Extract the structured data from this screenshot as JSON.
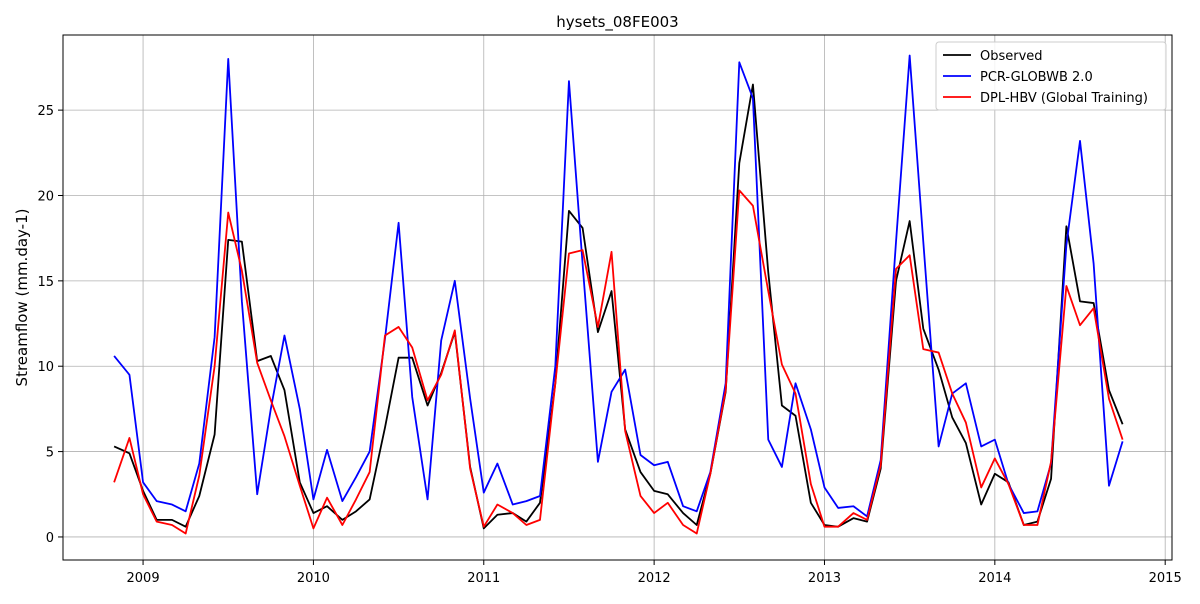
{
  "chart_data": {
    "type": "line",
    "title": "hysets_08FE003",
    "xlabel": "",
    "ylabel": "Streamflow (mm.day-1)",
    "xlim": [
      2008.53,
      2015.04
    ],
    "ylim": [
      -1.35,
      29.4
    ],
    "grid": true,
    "legend_position": "top-right",
    "x_ticks": [
      2009,
      2010,
      2011,
      2012,
      2013,
      2014,
      2015
    ],
    "y_ticks": [
      0,
      5,
      10,
      15,
      20,
      25
    ],
    "x": [
      2008.83,
      2008.92,
      2009.0,
      2009.08,
      2009.17,
      2009.25,
      2009.33,
      2009.42,
      2009.5,
      2009.58,
      2009.67,
      2009.75,
      2009.83,
      2009.92,
      2010.0,
      2010.08,
      2010.17,
      2010.25,
      2010.33,
      2010.42,
      2010.5,
      2010.58,
      2010.67,
      2010.75,
      2010.83,
      2010.92,
      2011.0,
      2011.08,
      2011.17,
      2011.25,
      2011.33,
      2011.42,
      2011.5,
      2011.58,
      2011.67,
      2011.75,
      2011.83,
      2011.92,
      2012.0,
      2012.08,
      2012.17,
      2012.25,
      2012.33,
      2012.42,
      2012.5,
      2012.58,
      2012.67,
      2012.75,
      2012.83,
      2012.92,
      2013.0,
      2013.08,
      2013.17,
      2013.25,
      2013.33,
      2013.42,
      2013.5,
      2013.58,
      2013.67,
      2013.75,
      2013.83,
      2013.92,
      2014.0,
      2014.08,
      2014.17,
      2014.25,
      2014.33,
      2014.42,
      2014.5,
      2014.58,
      2014.67,
      2014.75
    ],
    "series": [
      {
        "name": "Observed",
        "color": "#000000",
        "values": [
          5.3,
          4.9,
          2.7,
          1.0,
          1.0,
          0.6,
          2.4,
          6.0,
          17.4,
          17.3,
          10.3,
          10.6,
          8.6,
          3.2,
          1.4,
          1.8,
          1.0,
          1.5,
          2.2,
          6.4,
          10.5,
          10.5,
          7.7,
          9.6,
          12.0,
          4.1,
          0.5,
          1.3,
          1.4,
          0.9,
          2.0,
          9.0,
          19.1,
          18.1,
          12.0,
          14.4,
          6.3,
          3.8,
          2.7,
          2.5,
          1.4,
          0.7,
          3.7,
          8.5,
          21.9,
          26.5,
          15.5,
          7.7,
          7.1,
          2.0,
          0.7,
          0.6,
          1.1,
          0.9,
          4.0,
          15.0,
          18.5,
          12.2,
          9.8,
          7.0,
          5.5,
          1.9,
          3.7,
          3.2,
          0.7,
          0.9,
          3.4,
          18.2,
          13.8,
          13.7,
          8.6,
          6.6
        ]
      },
      {
        "name": "PCR-GLOBWB 2.0",
        "color": "#0000ff",
        "values": [
          10.6,
          9.5,
          3.2,
          2.1,
          1.9,
          1.5,
          4.3,
          11.7,
          28.0,
          13.8,
          2.5,
          7.5,
          11.8,
          7.5,
          2.2,
          5.1,
          2.1,
          3.5,
          5.0,
          11.6,
          18.4,
          8.2,
          2.2,
          11.5,
          15.0,
          8.1,
          2.6,
          4.3,
          1.9,
          2.1,
          2.4,
          10.0,
          26.7,
          16.0,
          4.4,
          8.5,
          9.8,
          4.8,
          4.2,
          4.4,
          1.8,
          1.5,
          3.8,
          9.0,
          27.8,
          25.7,
          5.7,
          4.1,
          9.0,
          6.3,
          2.9,
          1.7,
          1.8,
          1.2,
          4.5,
          17.3,
          28.2,
          17.3,
          5.3,
          8.4,
          9.0,
          5.3,
          5.7,
          3.1,
          1.4,
          1.5,
          4.3,
          17.1,
          23.2,
          16.0,
          3.0,
          5.6
        ]
      },
      {
        "name": "DPL-HBV (Global Training)",
        "color": "#ff0000",
        "values": [
          3.2,
          5.8,
          2.5,
          0.9,
          0.7,
          0.2,
          3.6,
          10.0,
          19.0,
          15.6,
          10.2,
          8.0,
          5.9,
          3.0,
          0.5,
          2.3,
          0.7,
          2.2,
          3.8,
          11.8,
          12.3,
          11.1,
          8.0,
          9.5,
          12.1,
          4.0,
          0.6,
          1.9,
          1.4,
          0.7,
          1.0,
          9.0,
          16.6,
          16.8,
          12.3,
          16.7,
          6.2,
          2.4,
          1.4,
          2.0,
          0.7,
          0.2,
          3.7,
          8.6,
          20.3,
          19.4,
          14.4,
          10.1,
          8.4,
          3.1,
          0.6,
          0.6,
          1.4,
          1.0,
          4.2,
          15.7,
          16.5,
          11.0,
          10.8,
          8.4,
          6.7,
          2.9,
          4.6,
          3.1,
          0.7,
          0.7,
          4.4,
          14.7,
          12.4,
          13.4,
          8.1,
          5.7
        ]
      }
    ]
  }
}
